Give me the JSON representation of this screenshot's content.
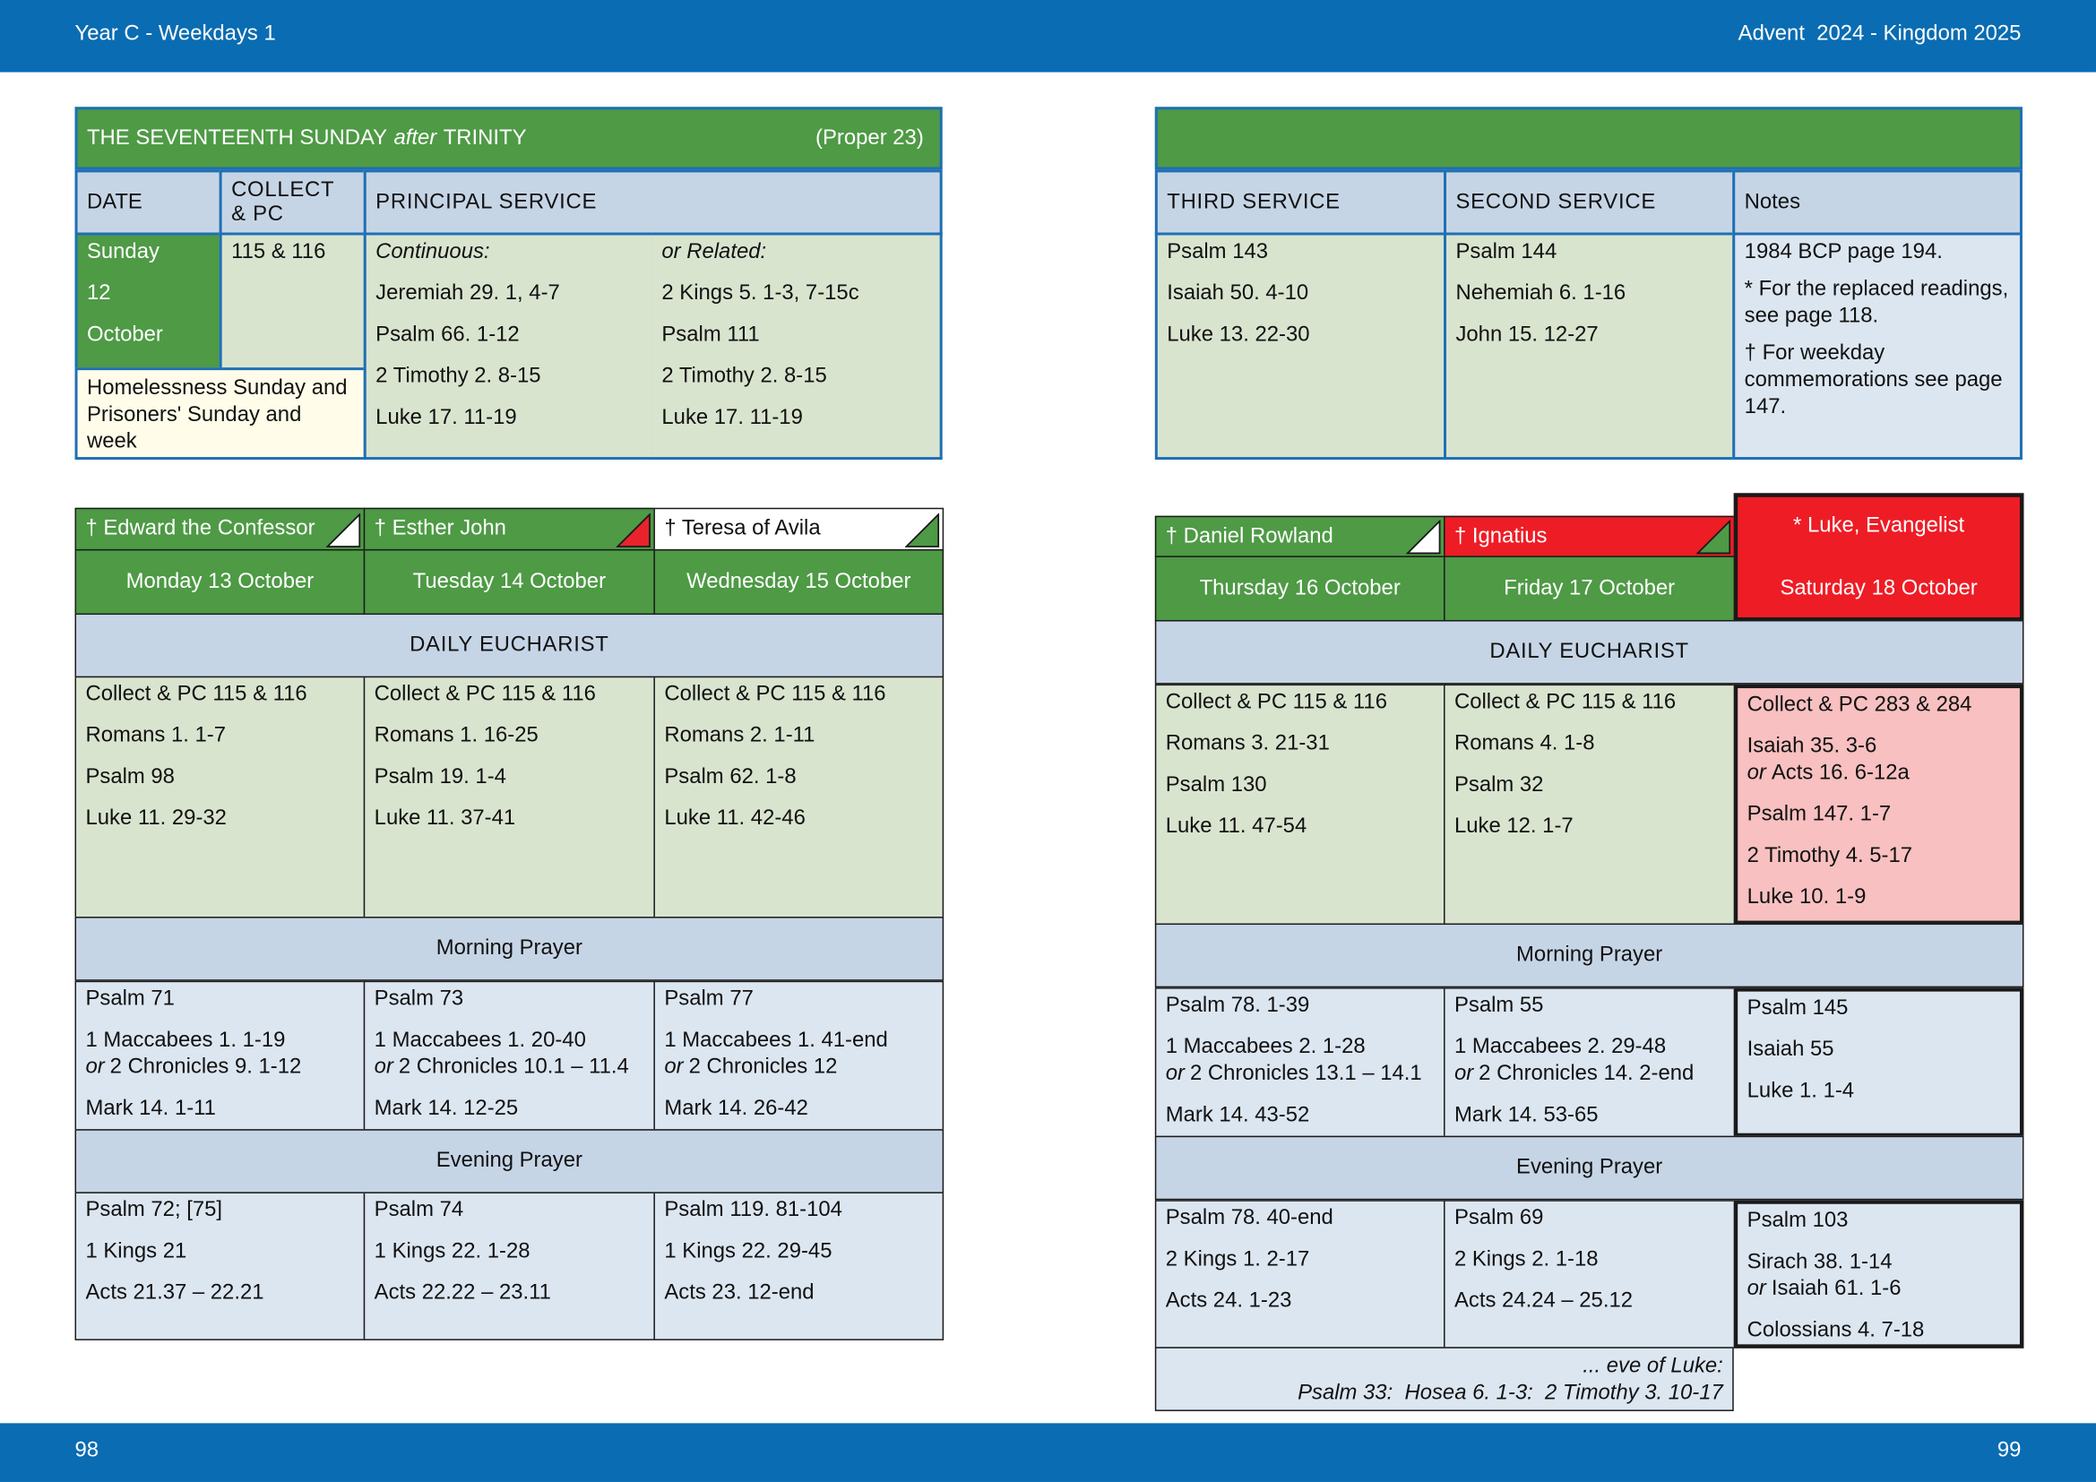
{
  "header": {
    "left": "Year C - Weekdays 1",
    "right": "Advent  2024 - Kingdom 2025"
  },
  "footer": {
    "left": "98",
    "right": "99"
  },
  "or_word": "or",
  "sections": {
    "eucharist": "DAILY EUCHARIST",
    "morning": "Morning Prayer",
    "evening": "Evening Prayer"
  },
  "sunday": {
    "title": "THE SEVENTEENTH SUNDAY",
    "title_italic": "after",
    "title_end": "TRINITY",
    "proper": "(Proper 23)",
    "headers": {
      "date": "DATE",
      "collect": "COLLECT & PC",
      "principal": "PRINCIPAL SERVICE",
      "third": "THIRD SERVICE",
      "second": "SECOND SERVICE",
      "notes": "Notes"
    },
    "date": [
      "Sunday",
      "12",
      "October"
    ],
    "collect": "115 & 116",
    "note": "Homelessness Sunday and Prisoners' Sunday and week",
    "continuous": {
      "label": "Continuous:",
      "readings": [
        "Jeremiah 29. 1, 4-7",
        "Psalm 66. 1-12",
        "2 Timothy 2. 8-15",
        "Luke 17. 11-19"
      ]
    },
    "related": {
      "label": "or Related:",
      "readings": [
        "2 Kings 5. 1-3, 7-15c",
        "Psalm 111",
        "2 Timothy 2. 8-15",
        "Luke 17. 11-19"
      ]
    },
    "third": [
      "Psalm 143",
      "Isaiah 50. 4-10",
      "Luke 13. 22-30"
    ],
    "second": [
      "Psalm 144",
      "Nehemiah 6. 1-16",
      "John 15. 12-27"
    ],
    "notes": [
      "1984 BCP page 194.",
      "* For the replaced readings, see page 118.",
      "† For weekday commemorations see page 147."
    ]
  },
  "left": {
    "days": [
      {
        "commemoration": "† Edward the Confessor",
        "style": "green",
        "marker": "#ffffff",
        "date": "Monday 13 October",
        "eucharist": [
          "Collect & PC 115 & 116",
          "Romans 1. 1-7",
          "Psalm 98",
          "Luke 11. 29-32"
        ],
        "morning": [
          "Psalm 71",
          {
            "text": "1 Maccabees 1. 1-19",
            "alt": "2 Chronicles 9. 1-12"
          },
          "Mark 14. 1-11"
        ],
        "evening": [
          "Psalm 72; [75]",
          "1 Kings 21",
          "Acts 21.37 – 22.21"
        ]
      },
      {
        "commemoration": "† Esther John",
        "style": "green",
        "marker": "#e8232b",
        "date": "Tuesday 14 October",
        "eucharist": [
          "Collect & PC 115 & 116",
          "Romans 1. 16-25",
          "Psalm 19. 1-4",
          "Luke 11. 37-41"
        ],
        "morning": [
          "Psalm 73",
          {
            "text": "1 Maccabees 1. 20-40",
            "alt": "2 Chronicles 10.1 – 11.4"
          },
          "Mark 14. 12-25"
        ],
        "evening": [
          "Psalm 74",
          "1 Kings 22. 1-28",
          "Acts 22.22 – 23.11"
        ]
      },
      {
        "commemoration": "† Teresa of Avila",
        "style": "white",
        "marker": "#4e9a45",
        "date": "Wednesday 15 October",
        "eucharist": [
          "Collect & PC 115 & 116",
          "Romans 2. 1-11",
          "Psalm 62. 1-8",
          "Luke 11. 42-46"
        ],
        "morning": [
          "Psalm 77",
          {
            "text": "1 Maccabees 1. 41-end",
            "alt": "2 Chronicles 12"
          },
          "Mark 14. 26-42"
        ],
        "evening": [
          "Psalm 119. 81-104",
          "1 Kings 22. 29-45",
          "Acts 23. 12-end"
        ]
      }
    ]
  },
  "right": {
    "days": [
      {
        "commemoration": "† Daniel Rowland",
        "style": "green",
        "marker": "#ffffff",
        "date": "Thursday 16 October",
        "eucharist": [
          "Collect & PC 115 & 116",
          "Romans 3. 21-31",
          "Psalm 130",
          "Luke 11. 47-54"
        ],
        "morning": [
          "Psalm 78. 1-39",
          {
            "text": "1 Maccabees 2. 1-28",
            "alt": "2 Chronicles 13.1 – 14.1"
          },
          "Mark 14. 43-52"
        ],
        "evening": [
          "Psalm 78. 40-end",
          "2 Kings 1. 2-17",
          "Acts 24. 1-23"
        ]
      },
      {
        "commemoration": "† Ignatius",
        "style": "red",
        "marker": "#4e9a45",
        "date": "Friday 17 October",
        "eucharist": [
          "Collect & PC 115 & 116",
          "Romans 4. 1-8",
          "Psalm 32",
          "Luke 12. 1-7"
        ],
        "morning": [
          "Psalm 55",
          {
            "text": "1 Maccabees 2. 29-48",
            "alt": "2 Chronicles 14. 2-end"
          },
          "Mark 14. 53-65"
        ],
        "evening": [
          "Psalm 69",
          "2 Kings 2. 1-18",
          "Acts 24.24 – 25.12"
        ]
      },
      {
        "commemoration": "* Luke, Evangelist",
        "style": "feast",
        "date": "Saturday 18 October",
        "eucharist": [
          "Collect & PC 283 & 284",
          {
            "text": "Isaiah 35. 3-6",
            "alt": "Acts 16. 6-12a"
          },
          "Psalm 147. 1-7",
          "2 Timothy 4. 5-17",
          "Luke 10. 1-9"
        ],
        "morning": [
          "Psalm 145",
          "Isaiah 55",
          "Luke 1. 1-4"
        ],
        "evening": [
          "Psalm 103",
          {
            "text": "Sirach 38. 1-14",
            "alt": "Isaiah 61. 1-6"
          },
          "Colossians 4. 7-18"
        ]
      }
    ],
    "eve": {
      "label": "... eve of Luke:",
      "readings": "Psalm 33:  Hosea 6. 1-3:  2 Timothy 3. 10-17"
    }
  }
}
